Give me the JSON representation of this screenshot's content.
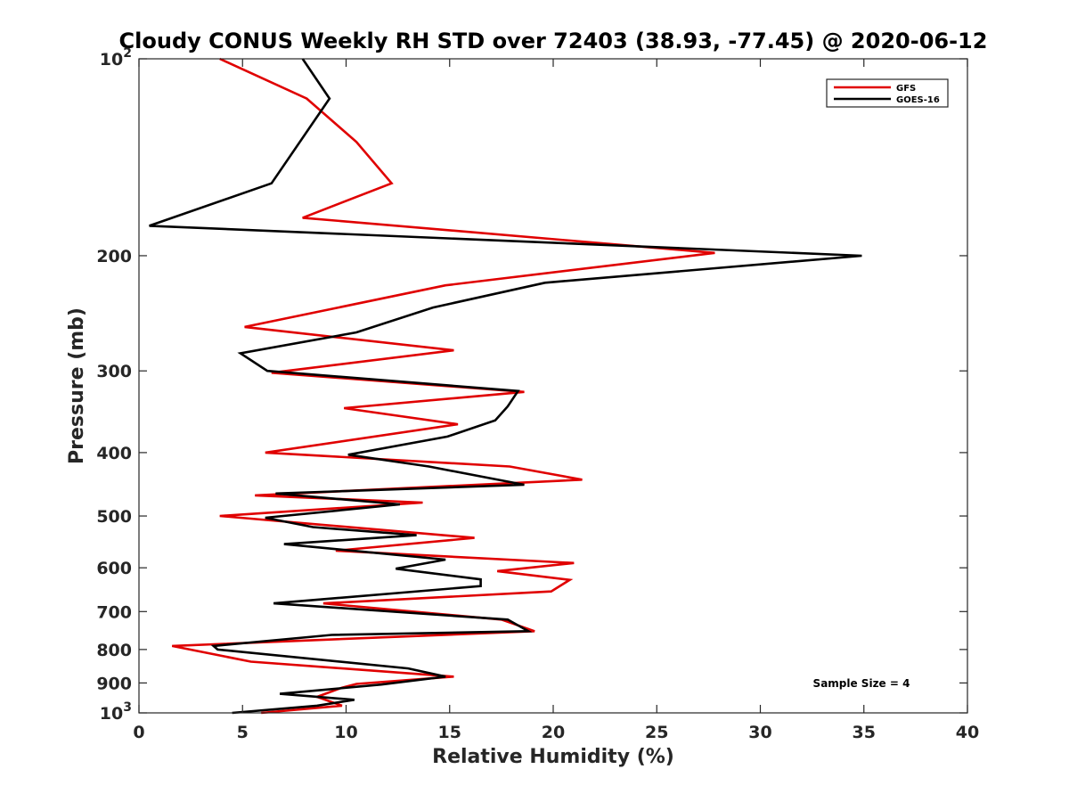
{
  "chart_data": {
    "type": "line",
    "title": "Cloudy CONUS Weekly RH STD over 72403 (38.93, -77.45) @ 2020-06-12",
    "xlabel": "Relative Humidity (%)",
    "ylabel": "Pressure (mb)",
    "xlim": [
      0,
      40
    ],
    "ylim": [
      1000,
      100
    ],
    "y_scale": "log",
    "y_reversed": true,
    "grid": false,
    "legend_position": "top-right",
    "x_ticks": [
      0,
      5,
      10,
      15,
      20,
      25,
      30,
      35,
      40
    ],
    "x_tick_labels": [
      "0",
      "5",
      "10",
      "15",
      "20",
      "25",
      "30",
      "35",
      "40"
    ],
    "y_ticks": [
      {
        "value": 100,
        "base": "10",
        "exp": "2",
        "label": ""
      },
      {
        "value": 200,
        "base": "",
        "exp": "",
        "label": "200"
      },
      {
        "value": 300,
        "base": "",
        "exp": "",
        "label": "300"
      },
      {
        "value": 400,
        "base": "",
        "exp": "",
        "label": "400"
      },
      {
        "value": 500,
        "base": "",
        "exp": "",
        "label": "500"
      },
      {
        "value": 600,
        "base": "",
        "exp": "",
        "label": "600"
      },
      {
        "value": 700,
        "base": "",
        "exp": "",
        "label": "700"
      },
      {
        "value": 800,
        "base": "",
        "exp": "",
        "label": "800"
      },
      {
        "value": 900,
        "base": "",
        "exp": "",
        "label": "900"
      },
      {
        "value": 1000,
        "base": "10",
        "exp": "3",
        "label": ""
      }
    ],
    "annotation": "Sample Size = 4",
    "series": [
      {
        "name": "GFS",
        "color": "#e00000",
        "points": [
          [
            3.9,
            100
          ],
          [
            8.1,
            115
          ],
          [
            10.5,
            134
          ],
          [
            12.2,
            155
          ],
          [
            7.9,
            175
          ],
          [
            27.8,
            198
          ],
          [
            14.8,
            222
          ],
          [
            5.1,
            257
          ],
          [
            15.2,
            279
          ],
          [
            6.4,
            302
          ],
          [
            18.6,
            323
          ],
          [
            9.9,
            342
          ],
          [
            15.4,
            362
          ],
          [
            6.1,
            400
          ],
          [
            17.9,
            420
          ],
          [
            21.4,
            440
          ],
          [
            5.6,
            465
          ],
          [
            13.7,
            477
          ],
          [
            3.9,
            500
          ],
          [
            16.2,
            540
          ],
          [
            9.5,
            565
          ],
          [
            21.0,
            590
          ],
          [
            17.3,
            607
          ],
          [
            20.8,
            626
          ],
          [
            19.9,
            652
          ],
          [
            8.9,
            680
          ],
          [
            17.5,
            720
          ],
          [
            19.1,
            750
          ],
          [
            1.6,
            790
          ],
          [
            5.4,
            835
          ],
          [
            15.2,
            880
          ],
          [
            10.5,
            903
          ],
          [
            9.8,
            915
          ],
          [
            8.6,
            945
          ],
          [
            9.8,
            975
          ],
          [
            5.9,
            1000
          ]
        ]
      },
      {
        "name": "GOES-16",
        "color": "#000000",
        "points": [
          [
            7.9,
            100
          ],
          [
            9.2,
            115
          ],
          [
            6.4,
            155
          ],
          [
            0.5,
            180
          ],
          [
            34.9,
            200
          ],
          [
            19.6,
            220
          ],
          [
            14.2,
            240
          ],
          [
            10.5,
            262
          ],
          [
            4.9,
            282
          ],
          [
            6.2,
            300
          ],
          [
            18.3,
            322
          ],
          [
            17.8,
            340
          ],
          [
            17.2,
            357
          ],
          [
            14.9,
            378
          ],
          [
            10.1,
            403
          ],
          [
            14.0,
            420
          ],
          [
            18.6,
            448
          ],
          [
            6.6,
            462
          ],
          [
            12.6,
            480
          ],
          [
            6.1,
            503
          ],
          [
            8.4,
            520
          ],
          [
            13.4,
            535
          ],
          [
            7.0,
            552
          ],
          [
            14.8,
            583
          ],
          [
            12.4,
            602
          ],
          [
            16.5,
            625
          ],
          [
            16.5,
            640
          ],
          [
            6.5,
            680
          ],
          [
            17.8,
            720
          ],
          [
            18.8,
            750
          ],
          [
            9.3,
            760
          ],
          [
            3.6,
            790
          ],
          [
            3.8,
            800
          ],
          [
            13.0,
            855
          ],
          [
            14.8,
            880
          ],
          [
            11.7,
            905
          ],
          [
            6.8,
            935
          ],
          [
            10.4,
            955
          ],
          [
            8.6,
            975
          ],
          [
            4.5,
            1000
          ]
        ]
      }
    ]
  }
}
